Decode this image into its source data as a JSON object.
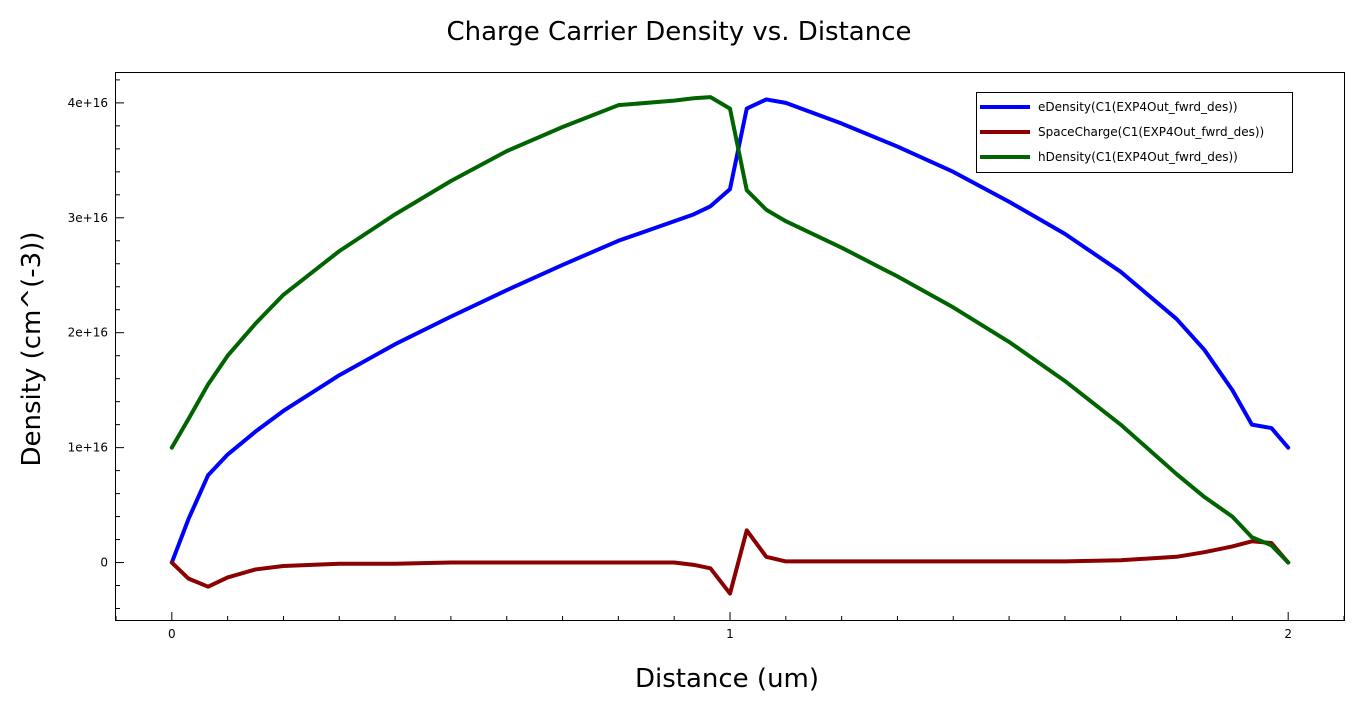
{
  "chart_data": {
    "type": "line",
    "title": "Charge Carrier Density vs. Distance",
    "xlabel": "Distance (um)",
    "ylabel": "Density (cm^(-3))",
    "xlim": [
      -0.1,
      2.1
    ],
    "ylim": [
      -5000000000000000.0,
      4.26e+16
    ],
    "x_ticks": [
      0,
      1,
      2
    ],
    "x_tick_labels": [
      "0",
      "1",
      "2"
    ],
    "y_ticks": [
      0,
      1e+16,
      2e+16,
      3e+16,
      4e+16
    ],
    "y_tick_labels": [
      "0",
      "1e+16",
      "2e+16",
      "3e+16",
      "4e+16"
    ],
    "grid": false,
    "legend_position": "top-right",
    "series": [
      {
        "name": "eDensity(C1(EXP4Out_fwrd_des))",
        "color": "#0000ff",
        "x": [
          0,
          0.03,
          0.065,
          0.1,
          0.15,
          0.2,
          0.3,
          0.4,
          0.5,
          0.6,
          0.7,
          0.8,
          0.9,
          0.935,
          0.965,
          1.0,
          1.03,
          1.065,
          1.1,
          1.2,
          1.3,
          1.4,
          1.5,
          1.6,
          1.7,
          1.8,
          1.85,
          1.9,
          1.935,
          1.97,
          2.0
        ],
        "y": [
          0,
          3800000000000000.0,
          7600000000000000.0,
          9400000000000000.0,
          1.14e+16,
          1.32e+16,
          1.63e+16,
          1.9e+16,
          2.14e+16,
          2.37e+16,
          2.59e+16,
          2.8e+16,
          2.97e+16,
          3.03e+16,
          3.1e+16,
          3.25e+16,
          3.95e+16,
          4.03e+16,
          4e+16,
          3.82e+16,
          3.62e+16,
          3.4e+16,
          3.14e+16,
          2.86e+16,
          2.53e+16,
          2.12e+16,
          1.85e+16,
          1.5e+16,
          1.2e+16,
          1.17e+16,
          1e+16
        ]
      },
      {
        "name": "SpaceCharge(C1(EXP4Out_fwrd_des))",
        "color": "#8b0000",
        "x": [
          0,
          0.03,
          0.065,
          0.1,
          0.15,
          0.2,
          0.3,
          0.4,
          0.5,
          0.6,
          0.7,
          0.8,
          0.9,
          0.935,
          0.965,
          1.0,
          1.03,
          1.065,
          1.1,
          1.2,
          1.3,
          1.4,
          1.5,
          1.6,
          1.7,
          1.8,
          1.85,
          1.9,
          1.935,
          1.97,
          2.0
        ],
        "y": [
          0,
          -1400000000000000.0,
          -2100000000000000.0,
          -1300000000000000.0,
          -600000000000000.0,
          -300000000000000.0,
          -100000000000000.0,
          -100000000000000.0,
          0,
          0,
          0,
          0,
          0,
          -200000000000000.0,
          -500000000000000.0,
          -2700000000000000.0,
          2800000000000000.0,
          500000000000000.0,
          100000000000000.0,
          100000000000000.0,
          100000000000000.0,
          100000000000000.0,
          100000000000000.0,
          100000000000000.0,
          200000000000000.0,
          500000000000000.0,
          900000000000000.0,
          1400000000000000.0,
          1850000000000000.0,
          1700000000000000.0,
          0
        ]
      },
      {
        "name": "hDensity(C1(EXP4Out_fwrd_des))",
        "color": "#006400",
        "x": [
          0,
          0.03,
          0.065,
          0.1,
          0.15,
          0.2,
          0.3,
          0.4,
          0.5,
          0.6,
          0.7,
          0.8,
          0.9,
          0.935,
          0.965,
          1.0,
          1.03,
          1.065,
          1.1,
          1.2,
          1.3,
          1.4,
          1.5,
          1.6,
          1.7,
          1.8,
          1.85,
          1.9,
          1.935,
          1.97,
          2.0
        ],
        "y": [
          1e+16,
          1.25e+16,
          1.55e+16,
          1.8e+16,
          2.08e+16,
          2.33e+16,
          2.71e+16,
          3.03e+16,
          3.32e+16,
          3.58e+16,
          3.79e+16,
          3.98e+16,
          4.02e+16,
          4.04e+16,
          4.05e+16,
          3.95e+16,
          3.24e+16,
          3.07e+16,
          2.97e+16,
          2.74e+16,
          2.49e+16,
          2.22e+16,
          1.92e+16,
          1.58e+16,
          1.2e+16,
          7700000000000000.0,
          5700000000000000.0,
          4000000000000000.0,
          2200000000000000.0,
          1500000000000000.0,
          0
        ]
      }
    ]
  }
}
